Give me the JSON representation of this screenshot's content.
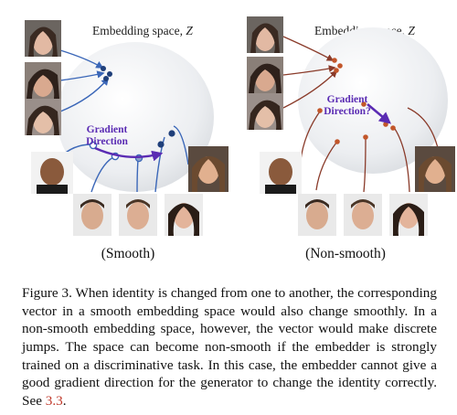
{
  "figure": {
    "left_panel": {
      "space_label": "Embedding space, ",
      "space_var": "Z",
      "gradient_label_line1": "Gradient",
      "gradient_label_line2": "Direction",
      "panel_label": "(Smooth)"
    },
    "right_panel": {
      "space_label": "Embedding space, ",
      "space_var": "Z",
      "gradient_label_line1": "Gradient",
      "gradient_label_line2": "Direction?",
      "panel_label": "(Non-smooth)"
    },
    "colors": {
      "smooth_point": "#1f3f7a",
      "smooth_line": "#3b67b8",
      "nonsmooth_point": "#c2562a",
      "nonsmooth_line": "#8a3b2a",
      "gradient_arrow": "#5a2bb3",
      "sphere": "#eef1f4"
    }
  },
  "caption": {
    "lead": "Figure 3. When identity is changed from one to another, the corresponding vector in a smooth embedding space would also change smoothly. In a non-smooth embedding space, however, the vector would make discrete jumps. The space can become non-smooth if the embedder is strongly trained on a discriminative task. In this case, the embedder cannot give a good gradient direction for the generator to change the identity correctly. See ",
    "ref": "3.3",
    "tail": "."
  }
}
